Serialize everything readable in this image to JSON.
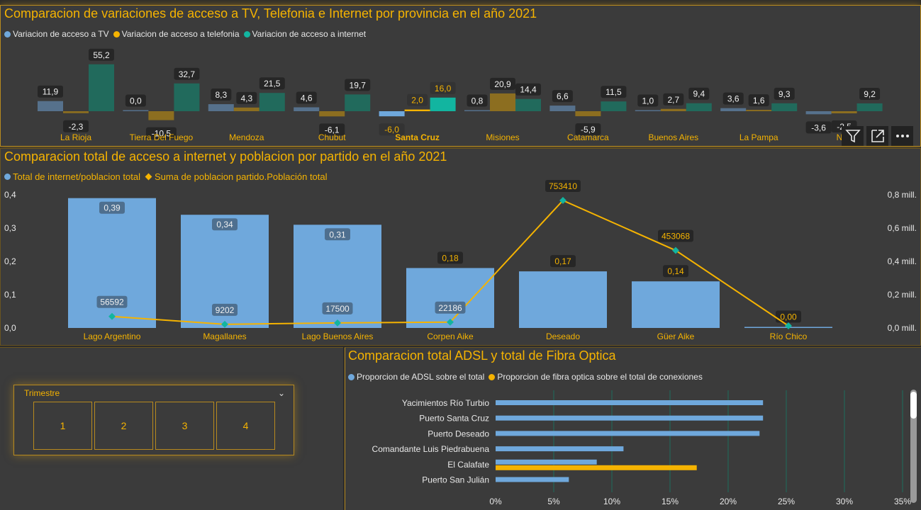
{
  "charts": {
    "provinces": {
      "title": "Comparacion de variaciones de acceso a TV, Telefonia e Internet por provincia en el año 2021",
      "legend": [
        "Variacion de acceso a TV",
        "Variacion de acceso a telefonia",
        "Variacion de acceso a internet"
      ],
      "colors": {
        "tv": "#6fa8dc",
        "telefonia": "#f5b301",
        "internet": "#12b5a0"
      }
    },
    "partidos": {
      "title": "Comparacion total de acceso a internet y poblacion por partido en el año 2021",
      "legend": [
        "Total de internet/poblacion total",
        "Suma de poblacion partido.Población total"
      ],
      "colors": {
        "bars": "#6fa8dc",
        "line": "#f5b301",
        "markers": "#12b5a0"
      }
    },
    "adsl": {
      "title": "Comparacion total ADSL y total de Fibra Optica",
      "legend": [
        "Proporcion de ADSL sobre el total",
        "Proporcion de fibra optica sobre el total de conexiones"
      ],
      "colors": {
        "adsl": "#6fa8dc",
        "fibra": "#f5b301"
      }
    }
  },
  "slicer": {
    "header": "Trimestre",
    "options": [
      "1",
      "2",
      "3",
      "4"
    ]
  },
  "chart_data": [
    {
      "type": "bar",
      "title": "Comparacion de variaciones de acceso a TV, Telefonia e Internet por provincia en el año 2021",
      "categories": [
        "La Rioja",
        "Tierra Del Fuego",
        "Mendoza",
        "Chubut",
        "Santa Cruz",
        "Misiones",
        "Catamarca",
        "Buenos Aires",
        "La Pampa",
        "Neu"
      ],
      "selected_category": "Santa Cruz",
      "series": [
        {
          "name": "Variacion de acceso a TV",
          "values": [
            11.9,
            0.0,
            8.3,
            4.6,
            -6.0,
            0.8,
            6.6,
            1.0,
            3.6,
            -3.6
          ]
        },
        {
          "name": "Variacion de acceso a telefonia",
          "values": [
            -2.3,
            -10.5,
            4.3,
            -6.1,
            2.0,
            20.9,
            -5.9,
            2.7,
            1.6,
            -2.5
          ]
        },
        {
          "name": "Variacion de acceso a internet",
          "values": [
            55.2,
            32.7,
            21.5,
            19.7,
            16.0,
            14.4,
            11.5,
            9.4,
            9.3,
            9.2
          ]
        }
      ],
      "labels": {
        "Variacion de acceso a TV": [
          "11,9",
          "0,0",
          "8,3",
          "4,6",
          "-6,0",
          "0,8",
          "6,6",
          "1,0",
          "3,6",
          "-3,6"
        ],
        "Variacion de acceso a telefonia": [
          "-2,3",
          "-10,5",
          "4,3",
          "-6,1",
          "2,0",
          "20,9",
          "-5,9",
          "2,7",
          "1,6",
          "-2,5"
        ],
        "Variacion de acceso a internet": [
          "55,2",
          "32,7",
          "21,5",
          "19,7",
          "16,0",
          "14,4",
          "11,5",
          "9,4",
          "9,3",
          "9,2"
        ]
      }
    },
    {
      "type": "bar",
      "title": "Comparacion total de acceso a internet y poblacion por partido en el año 2021",
      "categories": [
        "Lago Argentino",
        "Magallanes",
        "Lago Buenos Aires",
        "Corpen Aike",
        "Deseado",
        "Güer Aike",
        "Río Chico"
      ],
      "series": [
        {
          "name": "Total de internet/poblacion total",
          "values": [
            0.39,
            0.34,
            0.31,
            0.18,
            0.17,
            0.14,
            0.0
          ]
        },
        {
          "name": "Suma de poblacion partido.Población total",
          "values": [
            56592,
            9202,
            17500,
            22186,
            753410,
            453068,
            0
          ]
        }
      ],
      "labels": {
        "Total de internet/poblacion total": [
          "0,39",
          "0,34",
          "0,31",
          "0,18",
          "0,17",
          "0,14",
          "0,00"
        ],
        "Suma de poblacion partido.Población total": [
          "56592",
          "9202",
          "17500",
          "22186",
          "753410",
          "453068",
          ""
        ]
      },
      "ylim": [
        0,
        0.4
      ],
      "yticks": [
        "0,0",
        "0,1",
        "0,2",
        "0,3",
        "0,4"
      ],
      "y2lim": [
        0,
        800000
      ],
      "y2ticks": [
        "0,0 mill.",
        "0,2 mill.",
        "0,4 mill.",
        "0,6 mill.",
        "0,8 mill."
      ]
    },
    {
      "type": "bar",
      "orientation": "horizontal",
      "title": "Comparacion total ADSL y total de Fibra Optica",
      "categories": [
        "Yacimientos Río Turbio",
        "Puerto Santa Cruz",
        "Puerto Deseado",
        "Comandante Luis Piedrabuena",
        "El Calafate",
        "Puerto San Julián"
      ],
      "series": [
        {
          "name": "Proporcion de ADSL sobre el total",
          "values": [
            23.0,
            23.0,
            22.7,
            11.0,
            8.7,
            6.3
          ]
        },
        {
          "name": "Proporcion de fibra optica sobre el total de conexiones",
          "values": [
            0,
            0,
            0,
            0,
            17.3,
            0
          ]
        }
      ],
      "xlim": [
        0,
        35
      ],
      "xticks": [
        "0%",
        "5%",
        "10%",
        "15%",
        "20%",
        "25%",
        "30%",
        "35%"
      ]
    }
  ]
}
